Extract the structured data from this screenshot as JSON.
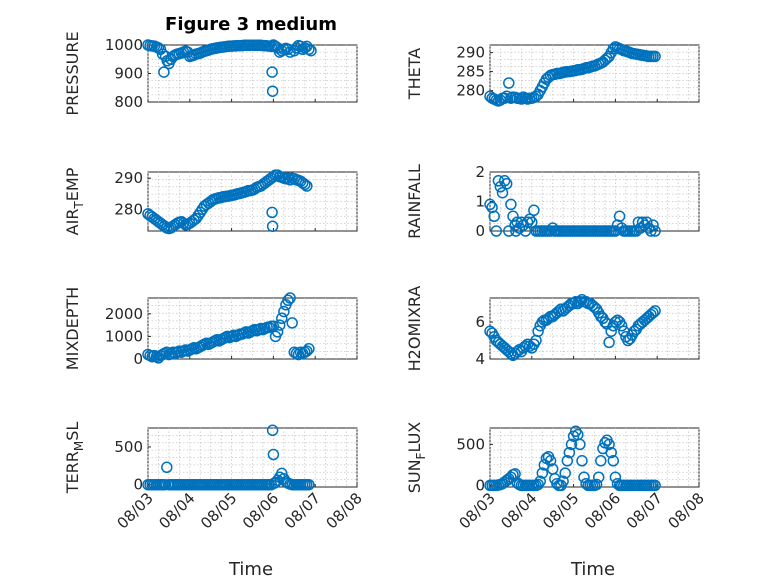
{
  "figure_title": "Figure 3 medium",
  "colors": {
    "marker": "#0072BD",
    "axis": "#262626"
  },
  "x_axis": {
    "range": [
      0,
      5
    ],
    "ticks": [
      0,
      1,
      2,
      3,
      4,
      5
    ],
    "tick_labels": [
      "08/03",
      "08/04",
      "08/05",
      "08/06",
      "08/07",
      "08/08"
    ],
    "label": "Time"
  },
  "chart_data": [
    {
      "type": "scatter",
      "ylabel": "PRESSURE",
      "ylim": [
        800,
        1000
      ],
      "yticks": [
        800,
        900,
        1000
      ],
      "grid": true,
      "x": [
        0.0,
        0.05,
        0.1,
        0.15,
        0.2,
        0.25,
        0.3,
        0.35,
        0.38,
        0.42,
        0.46,
        0.5,
        0.55,
        0.6,
        0.65,
        0.7,
        0.75,
        0.8,
        0.85,
        0.9,
        0.95,
        1.0,
        1.05,
        1.1,
        1.15,
        1.2,
        1.25,
        1.3,
        1.35,
        1.4,
        1.45,
        1.5,
        1.55,
        1.6,
        1.65,
        1.7,
        1.75,
        1.8,
        1.85,
        1.9,
        1.95,
        2.0,
        2.05,
        2.1,
        2.15,
        2.2,
        2.25,
        2.3,
        2.35,
        2.4,
        2.45,
        2.5,
        2.55,
        2.6,
        2.65,
        2.7,
        2.75,
        2.8,
        2.85,
        2.9,
        2.95,
        2.97,
        2.98,
        3.0,
        3.02,
        3.05,
        3.1,
        3.15,
        3.2,
        3.25,
        3.3,
        3.35,
        3.4,
        3.5,
        3.55,
        3.6,
        3.65,
        3.7,
        3.75,
        3.8,
        3.85,
        3.9
      ],
      "y": [
        1000,
        998,
        997,
        996,
        993,
        990,
        985,
        968,
        905,
        960,
        945,
        935,
        950,
        960,
        965,
        968,
        970,
        972,
        975,
        978,
        975,
        960,
        962,
        965,
        968,
        970,
        972,
        975,
        978,
        980,
        982,
        985,
        987,
        988,
        990,
        991,
        992,
        993,
        994,
        995,
        996,
        996,
        997,
        997,
        998,
        998,
        998,
        999,
        999,
        999,
        999,
        999,
        999,
        999,
        999,
        999,
        998,
        998,
        997,
        996,
        995,
        905,
        838,
        1000,
        997,
        995,
        990,
        975,
        980,
        985,
        988,
        985,
        975,
        980,
        990,
        998,
        995,
        985,
        990,
        995,
        985,
        980
      ],
      "markersize": 5
    },
    {
      "type": "scatter",
      "ylabel": "THETA",
      "ylim": [
        277,
        292
      ],
      "yticks": [
        280,
        285,
        290
      ],
      "grid": true,
      "x": [
        0.0,
        0.05,
        0.1,
        0.15,
        0.2,
        0.25,
        0.3,
        0.35,
        0.4,
        0.45,
        0.5,
        0.55,
        0.6,
        0.65,
        0.7,
        0.75,
        0.8,
        0.85,
        0.9,
        0.95,
        1.0,
        1.05,
        1.1,
        1.15,
        1.2,
        1.25,
        1.3,
        1.35,
        1.4,
        1.45,
        1.5,
        1.55,
        1.6,
        1.65,
        1.7,
        1.75,
        1.8,
        1.85,
        1.9,
        1.95,
        2.0,
        2.05,
        2.1,
        2.15,
        2.2,
        2.25,
        2.3,
        2.35,
        2.4,
        2.45,
        2.5,
        2.55,
        2.6,
        2.65,
        2.7,
        2.75,
        2.8,
        2.85,
        2.9,
        2.95,
        3.0,
        3.05,
        3.1,
        3.15,
        3.2,
        3.25,
        3.3,
        3.35,
        3.4,
        3.45,
        3.5,
        3.55,
        3.6,
        3.65,
        3.7,
        3.75,
        3.8,
        3.85,
        3.9,
        3.95
      ],
      "y": [
        278.5,
        278,
        277.8,
        277.5,
        277.3,
        277.5,
        278,
        278,
        278.5,
        282,
        278,
        278.3,
        278.2,
        278,
        278,
        277.8,
        278.3,
        278,
        277.8,
        278,
        278,
        278.2,
        278.5,
        279,
        280,
        281,
        282,
        283,
        283.5,
        284,
        284.2,
        284.3,
        284.5,
        284.5,
        284.6,
        284.8,
        284.9,
        285,
        285,
        285.1,
        285.2,
        285.3,
        285.5,
        285.5,
        285.6,
        285.8,
        286,
        286,
        286.2,
        286.4,
        286.5,
        286.7,
        287,
        287.2,
        287.5,
        288,
        288.5,
        289,
        290,
        291,
        291.5,
        291.3,
        291,
        290.8,
        290.5,
        290.4,
        290.2,
        290,
        289.8,
        289.7,
        289.6,
        289.5,
        289.4,
        289.3,
        289.2,
        289.1,
        289,
        289,
        289,
        289
      ],
      "markersize": 5
    },
    {
      "type": "scatter",
      "ylabel": "AIR_TEMP",
      "ylim": [
        273,
        292
      ],
      "yticks": [
        280,
        290
      ],
      "grid": true,
      "x": [
        0.0,
        0.05,
        0.1,
        0.15,
        0.2,
        0.25,
        0.3,
        0.35,
        0.4,
        0.45,
        0.5,
        0.55,
        0.6,
        0.65,
        0.7,
        0.75,
        0.8,
        0.85,
        0.9,
        0.95,
        1.0,
        1.05,
        1.1,
        1.15,
        1.2,
        1.25,
        1.3,
        1.35,
        1.4,
        1.45,
        1.5,
        1.55,
        1.6,
        1.65,
        1.7,
        1.75,
        1.8,
        1.85,
        1.9,
        1.95,
        2.0,
        2.05,
        2.1,
        2.15,
        2.2,
        2.25,
        2.3,
        2.35,
        2.4,
        2.45,
        2.5,
        2.55,
        2.6,
        2.65,
        2.7,
        2.75,
        2.8,
        2.85,
        2.9,
        2.95,
        2.97,
        2.98,
        3.0,
        3.05,
        3.1,
        3.15,
        3.2,
        3.25,
        3.3,
        3.35,
        3.4,
        3.45,
        3.5,
        3.55,
        3.6,
        3.65,
        3.7,
        3.75,
        3.8
      ],
      "y": [
        278.5,
        278,
        277.5,
        277,
        276.5,
        276,
        275.5,
        275,
        274.5,
        274,
        273.8,
        274,
        274.5,
        275,
        275.5,
        275.8,
        276,
        275.5,
        275,
        275.2,
        275.5,
        276,
        276.5,
        277,
        278,
        279,
        280,
        281,
        281.5,
        282,
        282.5,
        283,
        283.3,
        283.5,
        283.7,
        283.8,
        284,
        284.1,
        284.2,
        284.3,
        284.5,
        284.6,
        284.8,
        285,
        285.1,
        285.3,
        285.5,
        285.7,
        286,
        286,
        286.2,
        286.5,
        287,
        287.3,
        287.5,
        288,
        288.5,
        289,
        289.5,
        290,
        279,
        274.5,
        290.5,
        291,
        291,
        290.5,
        290.3,
        290,
        289.8,
        290,
        289.5,
        290,
        289.8,
        289.5,
        289.3,
        289,
        288.5,
        288,
        287.5
      ],
      "markersize": 5
    },
    {
      "type": "scatter",
      "ylabel": "RAINFALL",
      "ylim": [
        0,
        2
      ],
      "yticks": [
        0,
        1,
        2
      ],
      "grid": true,
      "x": [
        0.0,
        0.05,
        0.1,
        0.15,
        0.2,
        0.25,
        0.3,
        0.35,
        0.4,
        0.45,
        0.5,
        0.55,
        0.6,
        0.62,
        0.65,
        0.7,
        0.75,
        0.8,
        0.85,
        0.9,
        0.95,
        1.0,
        1.05,
        1.1,
        1.15,
        1.2,
        1.25,
        1.3,
        1.35,
        1.4,
        1.45,
        1.5,
        1.55,
        1.6,
        1.65,
        1.7,
        1.75,
        1.8,
        1.85,
        1.9,
        1.95,
        2.0,
        2.05,
        2.1,
        2.15,
        2.2,
        2.25,
        2.3,
        2.35,
        2.4,
        2.45,
        2.5,
        2.55,
        2.6,
        2.65,
        2.7,
        2.75,
        2.8,
        2.85,
        2.9,
        2.95,
        3.0,
        3.05,
        3.1,
        3.15,
        3.2,
        3.25,
        3.3,
        3.35,
        3.4,
        3.45,
        3.5,
        3.55,
        3.6,
        3.65,
        3.7,
        3.75,
        3.8,
        3.85,
        3.9,
        3.95
      ],
      "y": [
        0.9,
        0.8,
        0.5,
        0,
        1.7,
        1.5,
        1.3,
        1.7,
        1.6,
        0,
        0.9,
        0.5,
        0.2,
        0,
        0.3,
        0.1,
        0.3,
        0.2,
        0,
        0.3,
        0.4,
        0.3,
        0.7,
        0,
        0,
        0,
        0,
        0,
        0,
        0,
        0,
        0.1,
        0,
        0,
        0,
        0,
        0,
        0,
        0,
        0,
        0,
        0,
        0,
        0,
        0,
        0,
        0,
        0,
        0,
        0,
        0,
        0,
        0,
        0,
        0,
        0,
        0,
        0,
        0,
        0,
        0,
        0,
        0.2,
        0.5,
        0.1,
        0,
        0,
        0,
        0,
        0,
        0,
        0,
        0.3,
        0.1,
        0.3,
        0.2,
        0.3,
        0.1,
        0,
        0.2,
        0
      ],
      "markersize": 5
    },
    {
      "type": "scatter",
      "ylabel": "MIXDEPTH",
      "ylim": [
        0,
        2700
      ],
      "yticks": [
        0,
        1000,
        2000
      ],
      "grid": true,
      "x": [
        0.0,
        0.05,
        0.1,
        0.15,
        0.2,
        0.25,
        0.3,
        0.35,
        0.4,
        0.45,
        0.5,
        0.55,
        0.6,
        0.65,
        0.7,
        0.75,
        0.8,
        0.85,
        0.9,
        0.95,
        1.0,
        1.05,
        1.1,
        1.15,
        1.2,
        1.25,
        1.3,
        1.35,
        1.4,
        1.45,
        1.5,
        1.55,
        1.6,
        1.65,
        1.7,
        1.75,
        1.8,
        1.85,
        1.9,
        1.95,
        2.0,
        2.05,
        2.1,
        2.15,
        2.2,
        2.25,
        2.3,
        2.35,
        2.4,
        2.45,
        2.5,
        2.55,
        2.6,
        2.65,
        2.7,
        2.75,
        2.8,
        2.85,
        2.9,
        2.95,
        3.0,
        3.05,
        3.1,
        3.15,
        3.2,
        3.25,
        3.3,
        3.35,
        3.4,
        3.45,
        3.5,
        3.55,
        3.6,
        3.65,
        3.7,
        3.75,
        3.8,
        3.85
      ],
      "y": [
        200,
        150,
        100,
        150,
        100,
        50,
        150,
        200,
        250,
        300,
        200,
        250,
        300,
        250,
        300,
        350,
        300,
        350,
        400,
        350,
        400,
        450,
        500,
        450,
        500,
        550,
        600,
        650,
        700,
        650,
        700,
        750,
        800,
        850,
        800,
        850,
        900,
        950,
        1000,
        950,
        1000,
        1050,
        1000,
        1050,
        1100,
        1100,
        1150,
        1200,
        1150,
        1200,
        1250,
        1300,
        1250,
        1300,
        1350,
        1300,
        1350,
        1400,
        1400,
        1450,
        1450,
        1000,
        1200,
        1500,
        1800,
        2100,
        2400,
        2600,
        2700,
        1600,
        300,
        250,
        200,
        300,
        250,
        300,
        350,
        450
      ],
      "markersize": 5
    },
    {
      "type": "scatter",
      "ylabel": "H2OMIXRA",
      "ylim": [
        4,
        7.3
      ],
      "yticks": [
        4,
        6
      ],
      "grid": true,
      "x": [
        0.0,
        0.05,
        0.1,
        0.15,
        0.2,
        0.25,
        0.3,
        0.35,
        0.4,
        0.45,
        0.5,
        0.55,
        0.6,
        0.65,
        0.7,
        0.75,
        0.8,
        0.85,
        0.9,
        0.95,
        1.0,
        1.05,
        1.1,
        1.15,
        1.2,
        1.25,
        1.3,
        1.35,
        1.4,
        1.45,
        1.5,
        1.55,
        1.6,
        1.65,
        1.7,
        1.75,
        1.8,
        1.85,
        1.9,
        1.95,
        2.0,
        2.05,
        2.1,
        2.15,
        2.2,
        2.25,
        2.3,
        2.35,
        2.4,
        2.45,
        2.5,
        2.55,
        2.6,
        2.65,
        2.7,
        2.75,
        2.8,
        2.85,
        2.9,
        2.95,
        3.0,
        3.05,
        3.1,
        3.15,
        3.2,
        3.25,
        3.3,
        3.35,
        3.4,
        3.45,
        3.5,
        3.55,
        3.6,
        3.65,
        3.7,
        3.75,
        3.8,
        3.85,
        3.9,
        3.95
      ],
      "y": [
        5.5,
        5.4,
        5.2,
        5,
        4.9,
        4.8,
        4.7,
        4.6,
        4.5,
        4.4,
        4.3,
        4.2,
        4.3,
        4.4,
        4.5,
        4.4,
        4.6,
        4.7,
        4.8,
        4.7,
        4.6,
        4.8,
        5,
        5.5,
        5.8,
        6,
        6.1,
        6.1,
        6.2,
        6.3,
        6.3,
        6.4,
        6.5,
        6.6,
        6.7,
        6.6,
        6.7,
        6.8,
        6.9,
        7,
        7,
        7.1,
        7,
        7.1,
        7.2,
        7.1,
        7.1,
        7,
        7,
        6.9,
        6.8,
        6.7,
        6.5,
        6.3,
        6.2,
        6,
        5.9,
        4.9,
        5.5,
        5.8,
        6,
        6.1,
        6,
        5.8,
        5.5,
        5.2,
        5,
        5.1,
        5.3,
        5.5,
        5.6,
        5.8,
        5.9,
        6,
        6.1,
        6.2,
        6.3,
        6.4,
        6.5,
        6.6
      ],
      "markersize": 5
    },
    {
      "type": "scatter",
      "ylabel": "TERR_MSL",
      "ylim": [
        -30,
        750
      ],
      "yticks": [
        0,
        500
      ],
      "grid": true,
      "x": [
        0.0,
        0.05,
        0.1,
        0.15,
        0.2,
        0.25,
        0.3,
        0.35,
        0.4,
        0.45,
        0.5,
        0.55,
        0.6,
        0.65,
        0.7,
        0.75,
        0.8,
        0.85,
        0.9,
        0.95,
        1.0,
        1.05,
        1.1,
        1.15,
        1.2,
        1.25,
        1.3,
        1.35,
        1.4,
        1.45,
        1.5,
        1.55,
        1.6,
        1.65,
        1.7,
        1.75,
        1.8,
        1.85,
        1.9,
        1.95,
        2.0,
        2.05,
        2.1,
        2.15,
        2.2,
        2.25,
        2.3,
        2.35,
        2.4,
        2.45,
        2.5,
        2.55,
        2.6,
        2.65,
        2.7,
        2.75,
        2.8,
        2.85,
        2.9,
        2.95,
        2.98,
        3.0,
        3.02,
        3.05,
        3.1,
        3.15,
        3.2,
        3.25,
        3.3,
        3.35,
        3.4,
        3.45,
        3.5,
        3.55,
        3.6,
        3.65,
        3.7,
        3.75,
        3.8,
        3.85
      ],
      "y": [
        0,
        0,
        0,
        0,
        0,
        0,
        0,
        0,
        0,
        230,
        0,
        0,
        0,
        0,
        0,
        0,
        0,
        0,
        0,
        0,
        0,
        0,
        0,
        0,
        0,
        0,
        0,
        0,
        0,
        0,
        0,
        0,
        0,
        0,
        0,
        0,
        0,
        0,
        0,
        0,
        0,
        0,
        0,
        0,
        0,
        0,
        0,
        0,
        0,
        0,
        0,
        0,
        0,
        0,
        0,
        0,
        0,
        0,
        0,
        0,
        720,
        400,
        20,
        30,
        60,
        100,
        150,
        80,
        40,
        20,
        10,
        0,
        0,
        0,
        0,
        0,
        0,
        0,
        0,
        0
      ],
      "markersize": 5
    },
    {
      "type": "scatter",
      "ylabel": "SUN_FLUX",
      "ylim": [
        -20,
        700
      ],
      "yticks": [
        0,
        500
      ],
      "grid": true,
      "x": [
        0.0,
        0.05,
        0.1,
        0.15,
        0.2,
        0.25,
        0.3,
        0.35,
        0.4,
        0.45,
        0.5,
        0.55,
        0.6,
        0.65,
        0.7,
        0.75,
        0.8,
        0.85,
        0.9,
        0.95,
        1.0,
        1.05,
        1.1,
        1.15,
        1.2,
        1.25,
        1.3,
        1.35,
        1.4,
        1.45,
        1.5,
        1.55,
        1.6,
        1.65,
        1.7,
        1.75,
        1.8,
        1.85,
        1.9,
        1.95,
        2.0,
        2.05,
        2.1,
        2.15,
        2.2,
        2.25,
        2.3,
        2.35,
        2.4,
        2.45,
        2.5,
        2.55,
        2.6,
        2.65,
        2.7,
        2.75,
        2.8,
        2.85,
        2.9,
        2.95,
        3.0,
        3.05,
        3.1,
        3.15,
        3.2,
        3.25,
        3.3,
        3.35,
        3.4,
        3.45,
        3.5,
        3.55,
        3.6,
        3.65,
        3.7,
        3.75,
        3.8,
        3.85,
        3.9,
        3.95
      ],
      "y": [
        0,
        0,
        0,
        0,
        5,
        10,
        20,
        40,
        60,
        80,
        100,
        130,
        140,
        30,
        10,
        0,
        0,
        0,
        0,
        0,
        0,
        0,
        0,
        10,
        50,
        150,
        250,
        330,
        350,
        300,
        200,
        80,
        20,
        0,
        0,
        50,
        150,
        300,
        400,
        500,
        600,
        660,
        620,
        500,
        300,
        100,
        20,
        0,
        0,
        0,
        0,
        10,
        100,
        300,
        450,
        520,
        550,
        500,
        400,
        300,
        100,
        20,
        0,
        0,
        0,
        0,
        0,
        0,
        0,
        0,
        0,
        0,
        0,
        0,
        0,
        0,
        0,
        0,
        0,
        0
      ],
      "markersize": 5
    }
  ]
}
